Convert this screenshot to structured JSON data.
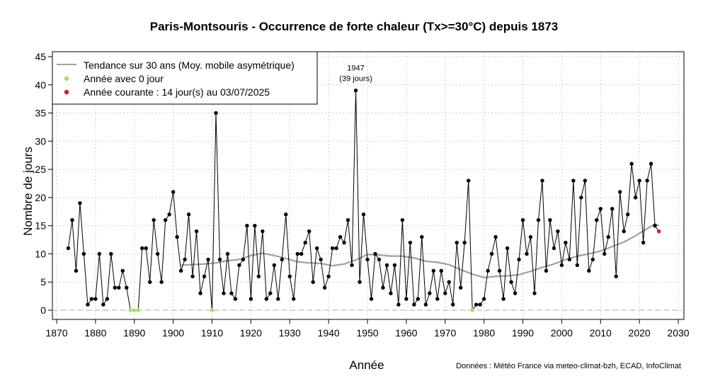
{
  "chart_data": {
    "type": "line",
    "title": "Paris-Montsouris - Occurrence de forte chaleur (Tx>=30°C) depuis 1873",
    "xlabel": "Année",
    "ylabel": "Nombre de jours",
    "credits": "Données : Météo France via meteo-climat-bzh, ECAD, InfoClimat",
    "xlim": [
      1870,
      2030
    ],
    "ylim": [
      0,
      45
    ],
    "xticks": [
      "1870",
      "1880",
      "1890",
      "1900",
      "1910",
      "1920",
      "1930",
      "1940",
      "1950",
      "1960",
      "1970",
      "1980",
      "1990",
      "2000",
      "2010",
      "2020",
      "2030"
    ],
    "yticks": [
      "0",
      "5",
      "10",
      "15",
      "20",
      "25",
      "30",
      "35",
      "40",
      "45"
    ],
    "grid": true,
    "legend_position": "top-left",
    "legend": {
      "trend": "Tendance sur 30 ans (Moy. mobile asymétrique)",
      "zero": "Année avec 0 jour",
      "current": "Année courante : 14 jour(s) au 03/07/2025"
    },
    "annotation": {
      "year_label": "1947",
      "days_label": "(39 jours)",
      "x": 1947,
      "y": 39
    },
    "colors": {
      "trend": "#a0a0a0",
      "zero": "#a8e060",
      "current": "#e8141c",
      "points": "#000000",
      "grid": "#d0d0d0"
    },
    "series": [
      {
        "name": "Nombre de jours",
        "x": [
          1873,
          1874,
          1875,
          1876,
          1877,
          1878,
          1879,
          1880,
          1881,
          1882,
          1883,
          1884,
          1885,
          1886,
          1887,
          1888,
          1889,
          1890,
          1891,
          1892,
          1893,
          1894,
          1895,
          1896,
          1897,
          1898,
          1899,
          1900,
          1901,
          1902,
          1903,
          1904,
          1905,
          1906,
          1907,
          1908,
          1909,
          1910,
          1911,
          1912,
          1913,
          1914,
          1915,
          1916,
          1917,
          1918,
          1919,
          1920,
          1921,
          1922,
          1923,
          1924,
          1925,
          1926,
          1927,
          1928,
          1929,
          1930,
          1931,
          1932,
          1933,
          1934,
          1935,
          1936,
          1937,
          1938,
          1939,
          1940,
          1941,
          1942,
          1943,
          1944,
          1945,
          1946,
          1947,
          1948,
          1949,
          1950,
          1951,
          1952,
          1953,
          1954,
          1955,
          1956,
          1957,
          1958,
          1959,
          1960,
          1961,
          1962,
          1963,
          1964,
          1965,
          1966,
          1967,
          1968,
          1969,
          1970,
          1971,
          1972,
          1973,
          1974,
          1975,
          1976,
          1977,
          1978,
          1979,
          1980,
          1981,
          1982,
          1983,
          1984,
          1985,
          1986,
          1987,
          1988,
          1989,
          1990,
          1991,
          1992,
          1993,
          1994,
          1995,
          1996,
          1997,
          1998,
          1999,
          2000,
          2001,
          2002,
          2003,
          2004,
          2005,
          2006,
          2007,
          2008,
          2009,
          2010,
          2011,
          2012,
          2013,
          2014,
          2015,
          2016,
          2017,
          2018,
          2019,
          2020,
          2021,
          2022,
          2023,
          2024,
          2025
        ],
        "y": [
          11,
          16,
          7,
          19,
          10,
          1,
          2,
          2,
          10,
          1,
          2,
          10,
          4,
          4,
          7,
          4,
          0,
          0,
          0,
          11,
          11,
          5,
          16,
          10,
          5,
          16,
          17,
          21,
          13,
          7,
          9,
          17,
          6,
          14,
          3,
          6,
          9,
          0,
          35,
          9,
          3,
          10,
          3,
          2,
          8,
          9,
          15,
          2,
          15,
          6,
          14,
          2,
          3,
          8,
          2,
          9,
          17,
          6,
          2,
          10,
          10,
          12,
          14,
          5,
          11,
          9,
          4,
          6,
          11,
          11,
          13,
          12,
          16,
          8,
          39,
          5,
          17,
          9,
          2,
          10,
          9,
          4,
          8,
          3,
          8,
          1,
          16,
          2,
          12,
          1,
          2,
          13,
          1,
          3,
          7,
          2,
          7,
          3,
          5,
          1,
          12,
          4,
          12,
          23,
          0,
          1,
          1,
          2,
          7,
          10,
          13,
          7,
          2,
          11,
          5,
          3,
          9,
          16,
          10,
          13,
          3,
          16,
          23,
          7,
          16,
          11,
          14,
          8,
          12,
          9,
          23,
          8,
          20,
          23,
          7,
          9,
          16,
          18,
          10,
          13,
          18,
          6,
          21,
          14,
          17,
          26,
          20,
          23,
          12,
          23,
          26,
          15,
          14
        ]
      },
      {
        "name": "Tendance sur 30 ans (Moy. mobile asymétrique)",
        "x": [
          1902,
          1905,
          1908,
          1911,
          1914,
          1917,
          1920,
          1923,
          1926,
          1929,
          1932,
          1935,
          1938,
          1941,
          1944,
          1947,
          1950,
          1953,
          1956,
          1959,
          1962,
          1965,
          1968,
          1971,
          1974,
          1977,
          1980,
          1983,
          1986,
          1989,
          1992,
          1995,
          1998,
          2001,
          2004,
          2007,
          2010,
          2013,
          2016,
          2019,
          2022,
          2024,
          2025
        ],
        "y": [
          8.0,
          8.1,
          8.2,
          8.4,
          8.8,
          9.0,
          9.7,
          10.1,
          9.7,
          9.2,
          8.6,
          8.4,
          8.3,
          7.9,
          8.2,
          8.9,
          9.9,
          9.8,
          9.6,
          9.6,
          9.3,
          8.7,
          8.5,
          8.1,
          7.2,
          6.4,
          5.8,
          6.0,
          6.1,
          6.3,
          6.9,
          7.6,
          8.2,
          9.0,
          9.6,
          10.0,
          10.5,
          11.3,
          12.1,
          13.2,
          14.5,
          15.3,
          15.0
        ]
      }
    ],
    "highlight": {
      "zero_years": [
        1889,
        1890,
        1891,
        1910,
        1977
      ],
      "current": {
        "x": 2025,
        "y": 14
      }
    }
  }
}
